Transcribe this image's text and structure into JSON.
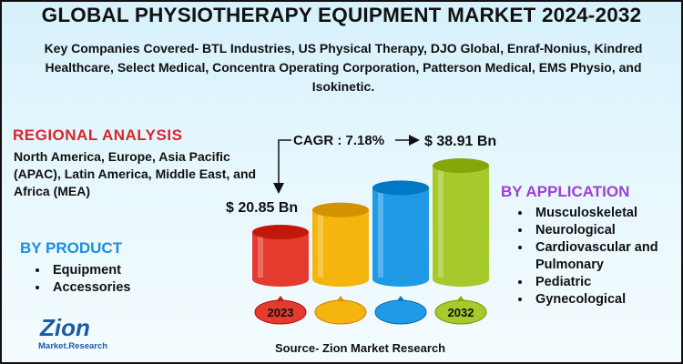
{
  "title": "GLOBAL PHYSIOTHERAPY EQUIPMENT MARKET 2024-2032",
  "companies": "Key Companies Covered- BTL Industries, US Physical Therapy, DJO Global, Enraf-Nonius, Kindred Healthcare, Select Medical, Concentra Operating Corporation, Patterson Medical, EMS Physio, and Isokinetic.",
  "regional": {
    "heading": "REGIONAL  ANALYSIS",
    "text": "North America, Europe, Asia Pacific (APAC), Latin America, Middle East, and Africa (MEA)"
  },
  "product": {
    "heading": "BY PRODUCT",
    "items": [
      "Equipment",
      "Accessories"
    ]
  },
  "application": {
    "heading": "BY APPLICATION",
    "items": [
      "Musculoskeletal",
      "Neurological",
      "Cardiovascular and Pulmonary",
      "Pediatric",
      "Gynecological"
    ]
  },
  "source": "Source- Zion Market Research",
  "logo": {
    "line1": "Zion",
    "line2": "Market.Research"
  },
  "colors": {
    "regional_heading": "#d8262a",
    "product_heading": "#1a8fe3",
    "application_heading": "#9c3fd6",
    "bars": [
      "#e53b2f",
      "#f6b50e",
      "#1f9be6",
      "#a6c92b"
    ]
  },
  "chart_data": {
    "type": "bar",
    "categories": [
      "2023",
      "",
      "",
      "2032"
    ],
    "values": [
      20.85,
      null,
      null,
      38.91
    ],
    "labels": {
      "start": "$ 20.85 Bn",
      "end": "$ 38.91 Bn"
    },
    "cagr": "CAGR : 7.18%"
  }
}
